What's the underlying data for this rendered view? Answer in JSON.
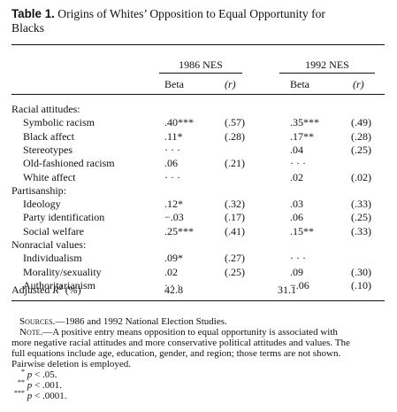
{
  "caption": {
    "label": "Table 1.",
    "line1": " Origins of Whites’ Opposition to Equal Opportunity for",
    "line2": "Blacks"
  },
  "headers": {
    "study1": "1986 NES",
    "study2": "1992 NES",
    "beta": "Beta",
    "r": "(r)"
  },
  "rows": [
    {
      "label": "Racial attitudes:",
      "group": true,
      "b86": "",
      "r86": "",
      "b92": "",
      "r92": ""
    },
    {
      "label": "Symbolic racism",
      "b86": ".40***",
      "r86": "(.57)",
      "b92": ".35***",
      "r92": "(.49)"
    },
    {
      "label": "Black affect",
      "b86": ".11*",
      "r86": "(.28)",
      "b92": ".17**",
      "r92": "(.28)"
    },
    {
      "label": "Stereotypes",
      "b86": "· · ·",
      "r86": "",
      "b92": ".04",
      "r92": "(.25)"
    },
    {
      "label": "Old-fashioned racism",
      "b86": ".06",
      "r86": "(.21)",
      "b92": "· · ·",
      "r92": ""
    },
    {
      "label": "White affect",
      "b86": "· · ·",
      "r86": "",
      "b92": ".02",
      "r92": "(.02)"
    },
    {
      "label": "Partisanship:",
      "group": true,
      "b86": "",
      "r86": "",
      "b92": "",
      "r92": ""
    },
    {
      "label": "Ideology",
      "b86": ".12*",
      "r86": "(.32)",
      "b92": ".03",
      "r92": "(.33)"
    },
    {
      "label": "Party identification",
      "b86": "−.03",
      "r86": "(.17)",
      "b92": ".06",
      "r92": "(.25)"
    },
    {
      "label": "Social welfare",
      "b86": ".25***",
      "r86": "(.41)",
      "b92": ".15**",
      "r92": "(.33)"
    },
    {
      "label": "Nonracial values:",
      "group": true,
      "b86": "",
      "r86": "",
      "b92": "",
      "r92": ""
    },
    {
      "label": "Individualism",
      "b86": ".09*",
      "r86": "(.27)",
      "b92": "· · ·",
      "r92": ""
    },
    {
      "label": "Morality/sexuality",
      "b86": ".02",
      "r86": "(.25)",
      "b92": ".09",
      "r92": "(.30)"
    },
    {
      "label": "Authoritarianism",
      "b86": "· · ·",
      "r86": "",
      "b92": "−.06",
      "r92": "(.10)"
    }
  ],
  "adjusted": {
    "label_pre": "Adjusted ",
    "label_var": "R",
    "label_sup": "2",
    "label_post": " (%)",
    "v86": "42.8",
    "v92": "31.1"
  },
  "notes": {
    "sources_label": "Sources.",
    "sources_text": "—1986 and 1992 National Election Studies.",
    "note_label": "Note.",
    "note_lines": [
      "—A positive entry means opposition to equal opportunity is associated with",
      "more negative racial attitudes and more conservative political attitudes and values. The",
      "full equations include age, education, gender, and region; those terms are not shown.",
      "Pairwise deletion is employed."
    ],
    "sig": [
      {
        "stars": "*",
        "var": "p",
        "rest": " < .05."
      },
      {
        "stars": "**",
        "var": "p",
        "rest": " < .001."
      },
      {
        "stars": "***",
        "var": "p",
        "rest": " < .0001."
      }
    ]
  }
}
